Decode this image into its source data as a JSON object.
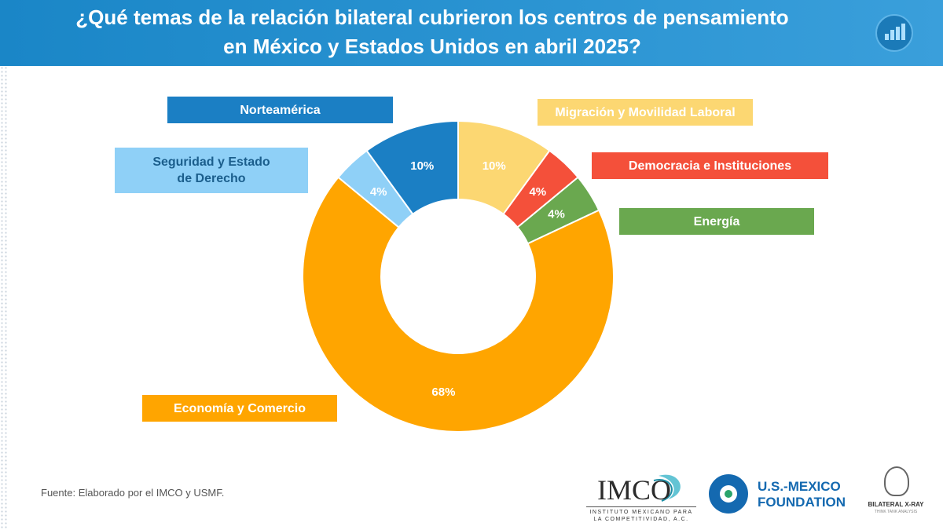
{
  "header": {
    "title_line1": "¿Qué temas de la relación bilateral cubrieron los centros de pensamiento",
    "title_line2": "en México y Estados Unidos en abril 2025?"
  },
  "chart_data": {
    "type": "pie",
    "variant": "donut",
    "title": "¿Qué temas de la relación bilateral cubrieron los centros de pensamiento en México y Estados Unidos en abril 2025?",
    "categories": [
      "Migración y Movilidad Laboral",
      "Democracia e Instituciones",
      "Energía",
      "Economía y Comercio",
      "Seguridad y Estado de Derecho",
      "Norteamérica"
    ],
    "values": [
      10,
      4,
      4,
      68,
      4,
      10
    ],
    "labels": [
      "10%",
      "4%",
      "4%",
      "68%",
      "4%",
      "10%"
    ],
    "colors": [
      "#fcd772",
      "#f4503a",
      "#6aa84f",
      "#ffa500",
      "#8fd0f7",
      "#1b7fc4"
    ],
    "label_text_colors": [
      "#ffffff",
      "#ffffff",
      "#ffffff",
      "#ffffff",
      "#ffffff",
      "#ffffff"
    ],
    "legend_text_colors": [
      "#ffffff",
      "#ffffff",
      "#ffffff",
      "#ffffff",
      "#1b5e8c",
      "#ffffff"
    ]
  },
  "footer": {
    "source": "Fuente: Elaborado por el IMCO y USMF.",
    "imco_name": "IMCO",
    "imco_subtitle": "INSTITUTO MEXICANO PARA LA COMPETITIVIDAD, A.C.",
    "usmf_line1": "U.S.-MEXICO",
    "usmf_line2": "FOUNDATION",
    "bilateral_name": "BILATERAL X-RAY",
    "bilateral_sub": "THINK TANK ANALYSIS"
  }
}
